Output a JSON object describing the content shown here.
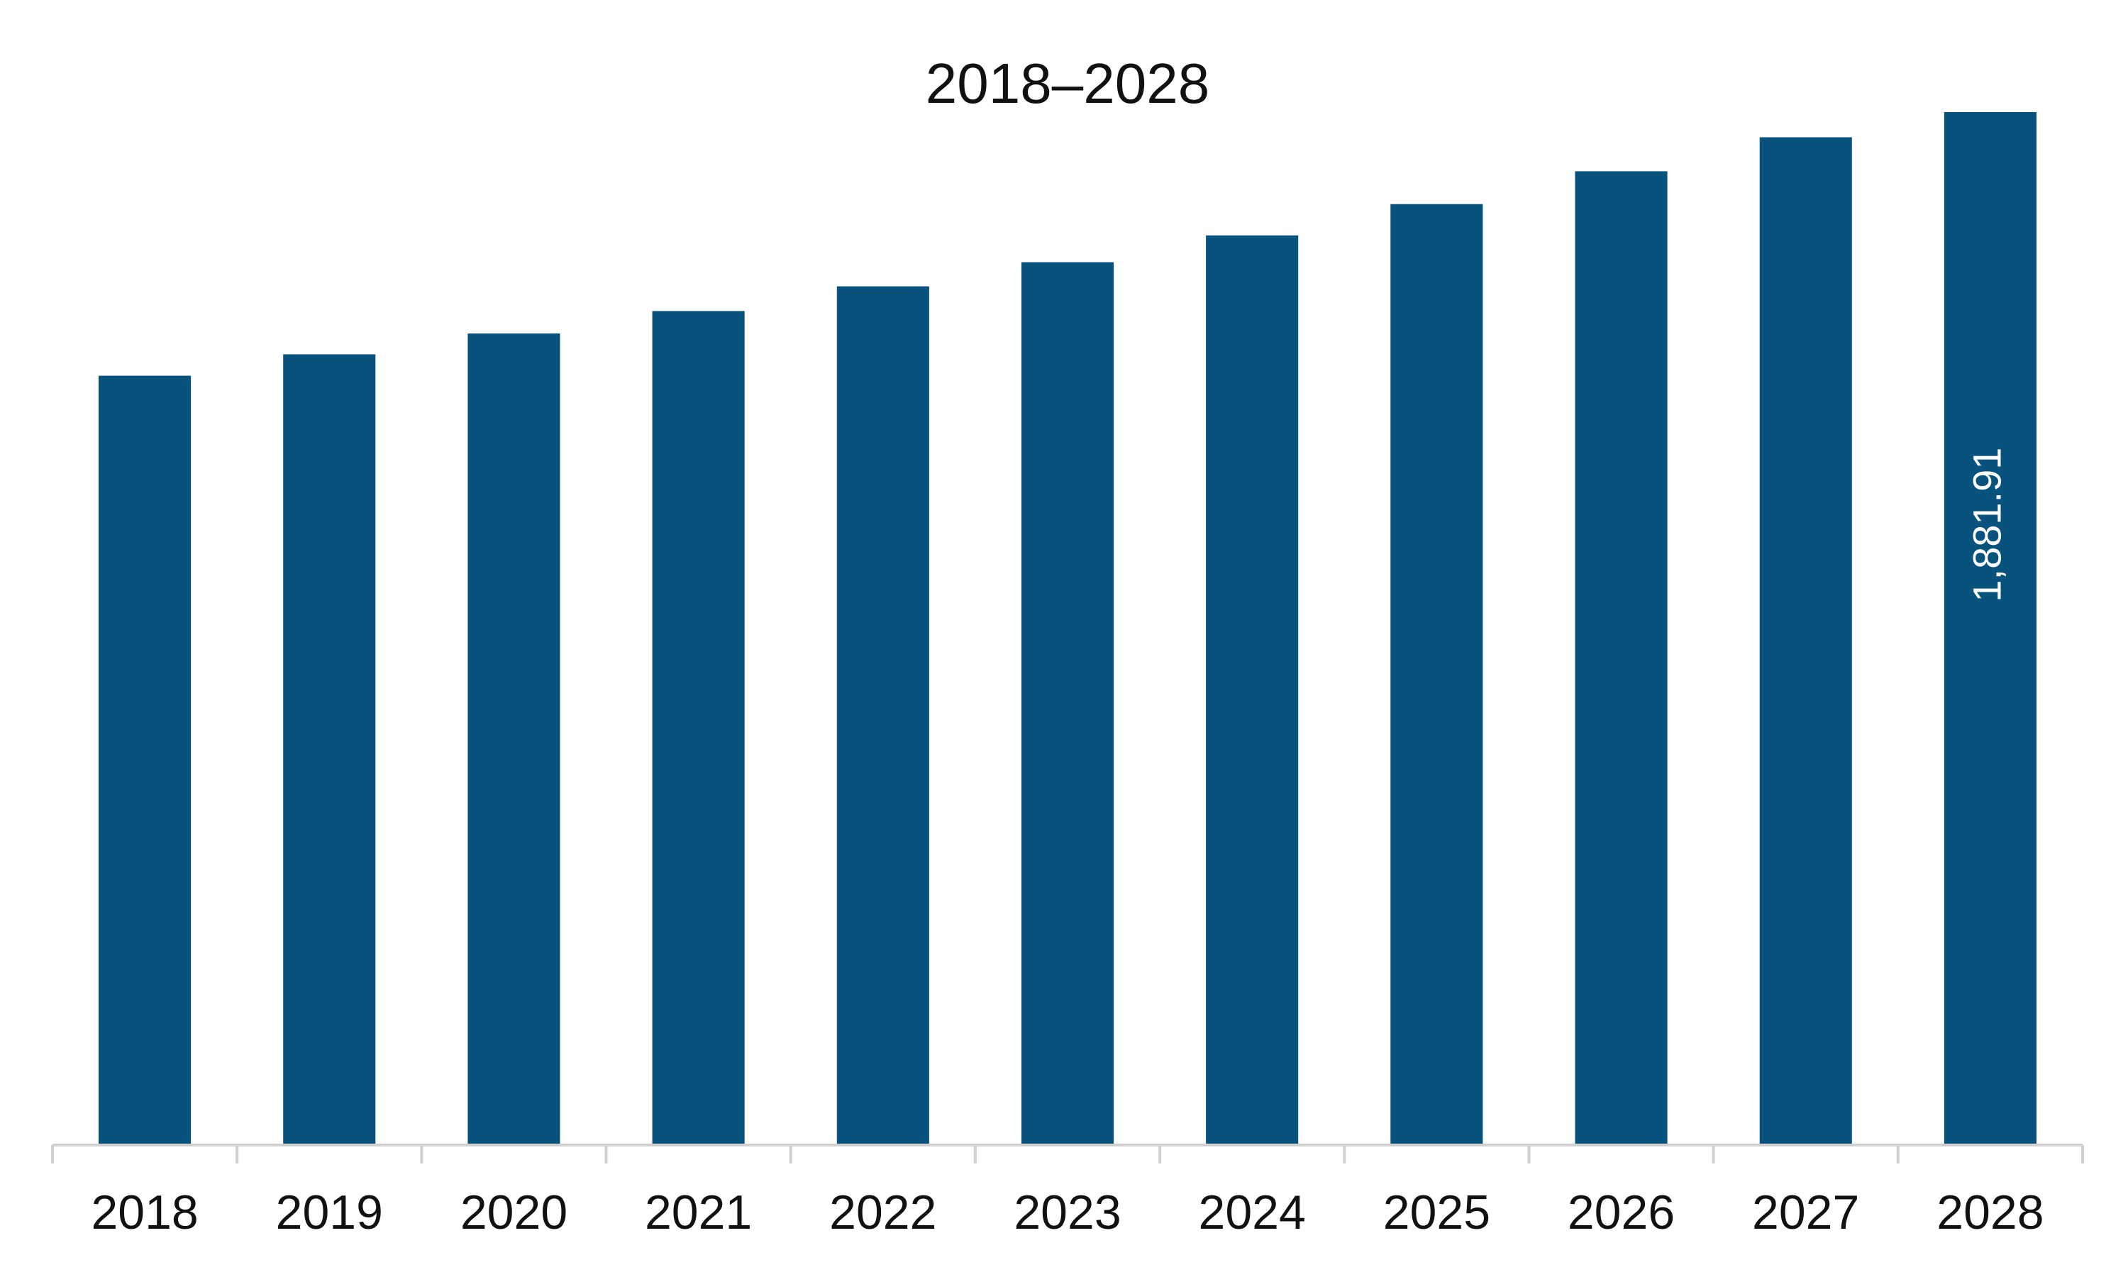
{
  "chart_data": {
    "type": "bar",
    "title": "2018–2028",
    "categories": [
      "2018",
      "2019",
      "2020",
      "2021",
      "2022",
      "2023",
      "2024",
      "2025",
      "2026",
      "2027",
      "2028"
    ],
    "values": [
      1401,
      1440,
      1478,
      1519,
      1564,
      1608,
      1657,
      1714,
      1774,
      1836,
      1881.91
    ],
    "data_labels": [
      {
        "category": "2028",
        "text": "1,881.91"
      }
    ],
    "bar_color": "#08527e",
    "ylim": [
      0,
      1881.91
    ],
    "grid": false,
    "legend": "none"
  }
}
